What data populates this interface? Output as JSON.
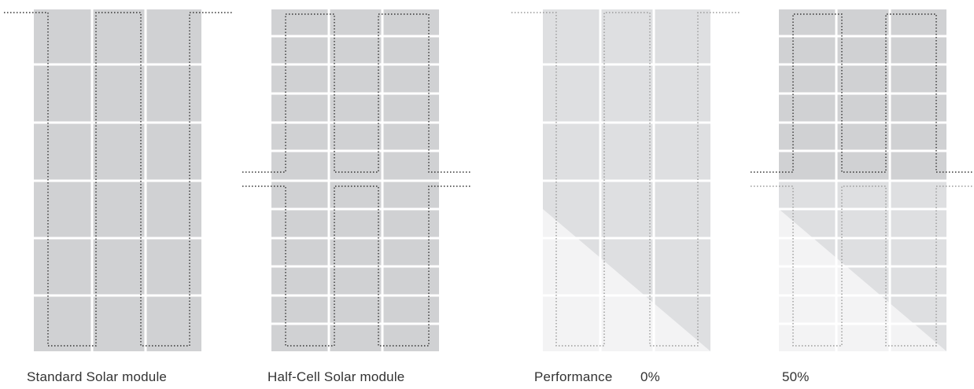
{
  "captions": {
    "standard": "Standard Solar module",
    "half_cell": "Half-Cell Solar module",
    "performance": "Performance",
    "performance_value": "0%",
    "value_50": "50%"
  },
  "colors": {
    "cell_gray": "#d0d1d3",
    "cell_light": "#dedfe1",
    "cell_shade": "#f3f3f4",
    "gridline": "#ffffff",
    "string_line": "#333333",
    "string_line_faded": "#9a9a9a",
    "caption_text": "#333333"
  },
  "modules": [
    {
      "name": "standard-solar-module",
      "type": "standard",
      "shaded": false
    },
    {
      "name": "half-cell-solar-module",
      "type": "half-cell",
      "shaded": false
    },
    {
      "name": "performance-0-module",
      "type": "standard",
      "shaded": true
    },
    {
      "name": "performance-50-module",
      "type": "half-cell",
      "shaded": true
    }
  ]
}
